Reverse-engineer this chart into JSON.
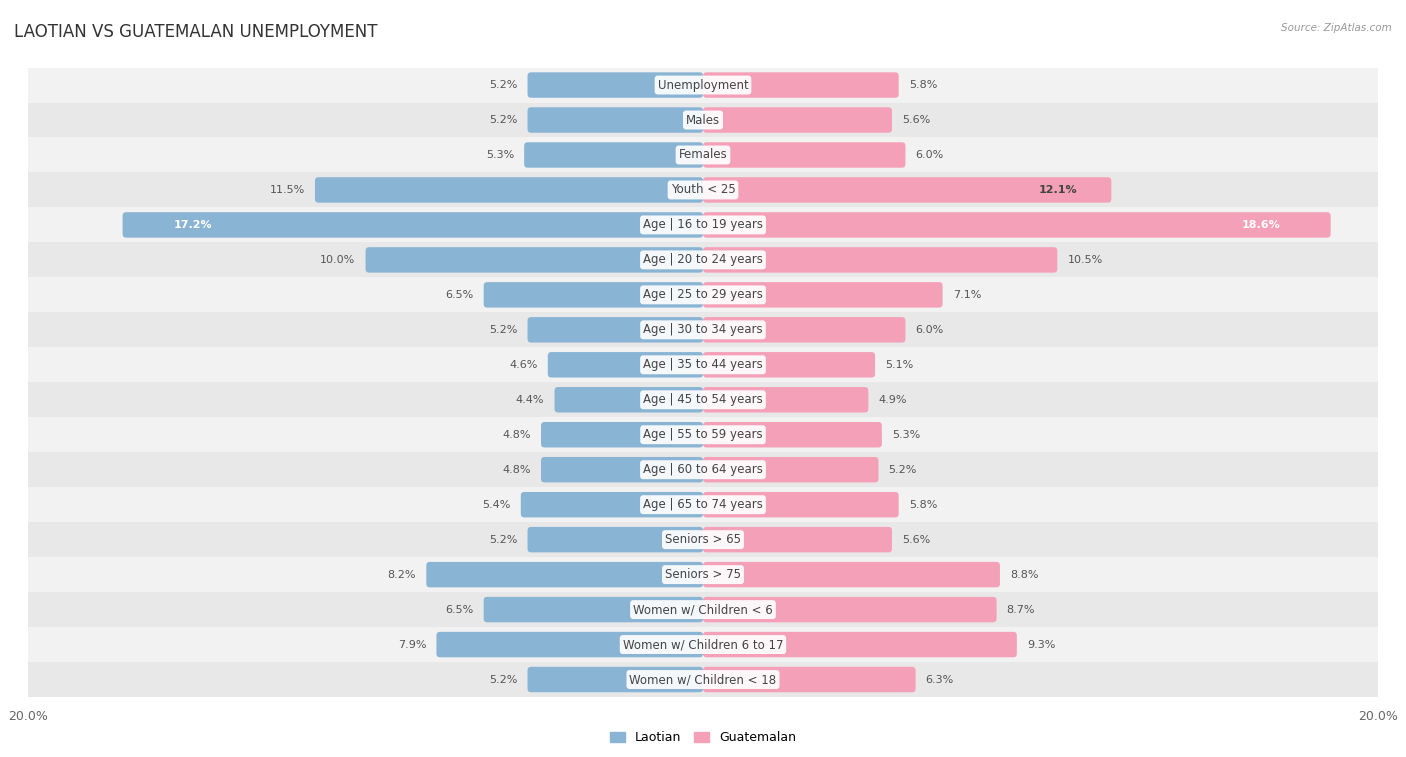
{
  "title": "LAOTIAN VS GUATEMALAN UNEMPLOYMENT",
  "source": "Source: ZipAtlas.com",
  "categories": [
    "Unemployment",
    "Males",
    "Females",
    "Youth < 25",
    "Age | 16 to 19 years",
    "Age | 20 to 24 years",
    "Age | 25 to 29 years",
    "Age | 30 to 34 years",
    "Age | 35 to 44 years",
    "Age | 45 to 54 years",
    "Age | 55 to 59 years",
    "Age | 60 to 64 years",
    "Age | 65 to 74 years",
    "Seniors > 65",
    "Seniors > 75",
    "Women w/ Children < 6",
    "Women w/ Children 6 to 17",
    "Women w/ Children < 18"
  ],
  "laotian": [
    5.2,
    5.2,
    5.3,
    11.5,
    17.2,
    10.0,
    6.5,
    5.2,
    4.6,
    4.4,
    4.8,
    4.8,
    5.4,
    5.2,
    8.2,
    6.5,
    7.9,
    5.2
  ],
  "guatemalan": [
    5.8,
    5.6,
    6.0,
    12.1,
    18.6,
    10.5,
    7.1,
    6.0,
    5.1,
    4.9,
    5.3,
    5.2,
    5.8,
    5.6,
    8.8,
    8.7,
    9.3,
    6.3
  ],
  "laotian_color": "#8ab4d4",
  "guatemalan_color": "#f4a0b8",
  "guatemalan_color_dark": "#e8708a",
  "laotian_color_dark": "#5a8ab8",
  "bar_height": 0.52,
  "xlim": 20.0,
  "row_bg_light": "#f2f2f2",
  "row_bg_dark": "#e8e8e8",
  "label_fontsize": 8.5,
  "title_fontsize": 12,
  "value_fontsize": 8,
  "axis_tick_fontsize": 9
}
